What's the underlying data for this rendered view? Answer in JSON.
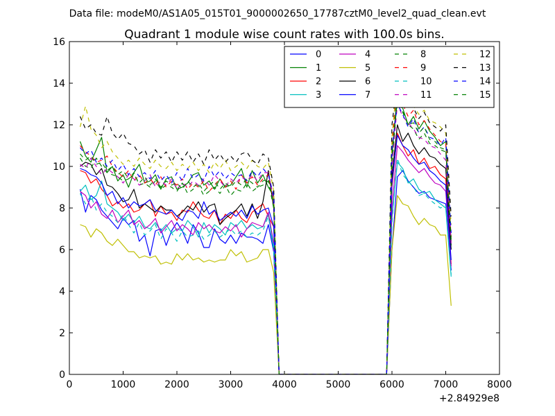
{
  "chart_data": {
    "type": "line",
    "suptitle": "Data file: modeM0/AS1A05_015T01_9000002650_17787cztM0_level2_quad_clean.evt",
    "title": "Quadrant 1 module wise count rates with 100.0s bins.",
    "xlabel": "",
    "ylabel": "",
    "x_offset_label": "+2.84929e8",
    "xlim": [
      0,
      8000
    ],
    "ylim": [
      0,
      16
    ],
    "xticks": [
      0,
      1000,
      2000,
      3000,
      4000,
      5000,
      6000,
      7000,
      8000
    ],
    "yticks": [
      0,
      2,
      4,
      6,
      8,
      10,
      12,
      14,
      16
    ],
    "grid": false,
    "legend_position": "top-right",
    "legend_columns": 4,
    "colors": {
      "b": "#0000ff",
      "g": "#008000",
      "r": "#ff0000",
      "c": "#00bfbf",
      "m": "#bf00bf",
      "y": "#bfbf00",
      "k": "#000000"
    },
    "x": [
      200,
      300,
      400,
      500,
      600,
      700,
      800,
      900,
      1000,
      1100,
      1200,
      1300,
      1400,
      1500,
      1600,
      1700,
      1800,
      1900,
      2000,
      2100,
      2200,
      2300,
      2400,
      2500,
      2600,
      2700,
      2800,
      2900,
      3000,
      3100,
      3200,
      3300,
      3400,
      3500,
      3600,
      3700,
      3800,
      3900,
      4000,
      5900,
      6000,
      6100,
      6200,
      6300,
      6400,
      6500,
      6600,
      6700,
      6800,
      6900,
      7000,
      7100
    ],
    "series": [
      {
        "name": "0",
        "color": "b",
        "dash": false,
        "values": [
          8.9,
          7.8,
          8.6,
          8.4,
          7.9,
          7.6,
          7.3,
          7.0,
          7.5,
          7.2,
          7.4,
          6.4,
          6.7,
          5.7,
          6.9,
          7.0,
          6.2,
          6.9,
          7.3,
          6.9,
          6.3,
          7.2,
          6.8,
          6.1,
          6.1,
          7.0,
          6.5,
          6.3,
          6.7,
          6.3,
          6.8,
          6.6,
          6.6,
          6.5,
          6.3,
          7.2,
          5.9,
          0,
          0,
          0,
          6.0,
          9.5,
          9.8,
          9.3,
          9.0,
          8.7,
          8.8,
          8.5,
          8.4,
          8.3,
          8.2,
          5.0
        ]
      },
      {
        "name": "1",
        "color": "g",
        "dash": false,
        "values": [
          11.2,
          10.5,
          10.2,
          10.8,
          11.4,
          9.7,
          10.0,
          9.3,
          9.6,
          9.0,
          9.7,
          10.1,
          9.2,
          9.3,
          9.6,
          8.9,
          9.4,
          9.5,
          8.9,
          9.0,
          9.2,
          9.6,
          9.7,
          9.1,
          9.3,
          8.9,
          9.4,
          9.0,
          9.1,
          9.5,
          9.9,
          9.0,
          9.8,
          9.2,
          9.6,
          9.0,
          8.6,
          0,
          0,
          0,
          10.5,
          13.6,
          12.8,
          12.0,
          12.4,
          11.8,
          12.2,
          11.7,
          11.4,
          11.0,
          11.2,
          6.2
        ]
      },
      {
        "name": "2",
        "color": "r",
        "dash": false,
        "values": [
          9.8,
          9.7,
          9.2,
          9.4,
          8.9,
          8.6,
          8.1,
          8.3,
          8.0,
          8.2,
          7.8,
          7.9,
          8.2,
          8.4,
          7.6,
          8.1,
          7.7,
          7.8,
          7.4,
          7.9,
          7.8,
          8.3,
          7.9,
          7.6,
          7.5,
          7.9,
          7.2,
          7.7,
          7.5,
          7.9,
          7.5,
          7.3,
          7.8,
          8.0,
          8.2,
          7.6,
          7.1,
          0,
          0,
          0,
          9.0,
          11.6,
          11.0,
          10.5,
          10.8,
          10.1,
          10.4,
          9.9,
          10.0,
          9.6,
          9.4,
          5.3
        ]
      },
      {
        "name": "3",
        "color": "c",
        "dash": false,
        "values": [
          8.8,
          9.1,
          8.4,
          8.6,
          9.3,
          8.2,
          8.0,
          7.8,
          7.4,
          7.7,
          7.3,
          7.6,
          7.1,
          7.0,
          7.3,
          6.9,
          7.2,
          6.8,
          7.0,
          6.9,
          7.4,
          7.1,
          6.6,
          7.3,
          6.8,
          7.2,
          7.0,
          6.7,
          7.3,
          7.1,
          7.4,
          7.0,
          7.2,
          7.0,
          7.1,
          7.7,
          6.0,
          0,
          0,
          0,
          7.5,
          10.2,
          9.9,
          9.2,
          9.4,
          8.9,
          8.7,
          8.8,
          8.4,
          8.2,
          8.0,
          4.7
        ]
      },
      {
        "name": "4",
        "color": "m",
        "dash": false,
        "values": [
          8.8,
          8.6,
          8.0,
          8.3,
          7.7,
          7.5,
          7.9,
          7.3,
          7.6,
          7.9,
          7.2,
          7.4,
          7.0,
          7.2,
          7.5,
          6.8,
          7.1,
          7.4,
          6.9,
          7.2,
          7.0,
          6.7,
          7.3,
          7.0,
          7.2,
          6.9,
          6.8,
          7.1,
          6.9,
          7.2,
          6.6,
          7.0,
          7.3,
          7.2,
          7.1,
          7.8,
          6.3,
          0,
          0,
          0,
          8.0,
          11.0,
          10.7,
          10.3,
          10.0,
          9.7,
          9.9,
          9.5,
          9.2,
          9.1,
          8.8,
          5.2
        ]
      },
      {
        "name": "5",
        "color": "y",
        "dash": false,
        "values": [
          7.2,
          7.1,
          6.6,
          7.0,
          6.8,
          6.4,
          6.2,
          6.5,
          6.2,
          5.9,
          5.9,
          5.6,
          5.7,
          5.6,
          5.7,
          5.3,
          5.4,
          5.3,
          5.8,
          5.5,
          5.8,
          5.5,
          5.6,
          5.4,
          5.5,
          5.4,
          5.5,
          5.5,
          6.0,
          5.7,
          5.9,
          5.4,
          5.5,
          5.6,
          6.0,
          6.0,
          4.9,
          0,
          0,
          0,
          6.0,
          8.6,
          8.2,
          8.1,
          7.6,
          7.2,
          7.5,
          7.2,
          7.1,
          6.7,
          6.7,
          3.3
        ]
      },
      {
        "name": "6",
        "color": "k",
        "dash": false,
        "values": [
          10.0,
          10.2,
          10.1,
          9.6,
          9.9,
          9.1,
          9.0,
          8.7,
          8.3,
          8.4,
          8.9,
          8.0,
          8.2,
          8.0,
          7.8,
          8.1,
          7.9,
          7.9,
          7.6,
          7.8,
          8.1,
          7.9,
          8.3,
          7.8,
          8.1,
          8.2,
          7.2,
          7.5,
          7.7,
          7.9,
          8.2,
          7.6,
          8.2,
          7.5,
          8.3,
          9.8,
          8.0,
          0,
          0,
          0,
          9.5,
          12.0,
          11.2,
          11.6,
          11.0,
          10.6,
          10.9,
          10.5,
          10.4,
          10.1,
          9.9,
          6.0
        ]
      },
      {
        "name": "7",
        "color": "b",
        "dash": false,
        "values": [
          9.9,
          9.8,
          9.6,
          9.5,
          9.2,
          8.6,
          8.8,
          8.2,
          8.5,
          8.0,
          8.3,
          8.1,
          8.2,
          8.4,
          7.9,
          7.8,
          7.7,
          7.9,
          7.6,
          7.4,
          7.9,
          7.8,
          7.5,
          8.3,
          7.7,
          7.9,
          7.4,
          7.6,
          7.8,
          7.6,
          7.9,
          7.5,
          8.1,
          7.7,
          7.9,
          8.0,
          7.1,
          0,
          0,
          0,
          9.2,
          11.5,
          11.0,
          10.8,
          10.4,
          10.1,
          10.2,
          9.8,
          9.6,
          9.3,
          9.1,
          5.5
        ]
      },
      {
        "name": "8",
        "color": "g",
        "dash": true,
        "values": [
          10.4,
          10.0,
          9.9,
          10.4,
          10.0,
          9.7,
          9.6,
          9.5,
          9.3,
          9.4,
          9.7,
          9.1,
          9.2,
          9.0,
          9.3,
          8.9,
          9.1,
          9.0,
          8.8,
          9.2,
          8.7,
          8.9,
          9.1,
          8.6,
          8.8,
          9.0,
          8.7,
          9.1,
          8.6,
          8.9,
          8.8,
          9.2,
          8.8,
          9.0,
          9.1,
          9.3,
          8.0,
          0,
          0,
          0,
          10.0,
          13.4,
          12.6,
          12.0,
          11.8,
          11.3,
          11.6,
          11.1,
          11.0,
          10.8,
          10.7,
          6.4
        ]
      },
      {
        "name": "9",
        "color": "r",
        "dash": true,
        "values": [
          11.0,
          10.7,
          10.5,
          10.2,
          10.3,
          10.5,
          10.0,
          9.7,
          9.5,
          9.8,
          9.3,
          9.6,
          9.2,
          9.4,
          9.1,
          9.5,
          9.0,
          9.3,
          9.1,
          9.4,
          8.9,
          9.2,
          9.0,
          9.3,
          8.8,
          9.1,
          9.4,
          9.0,
          9.3,
          8.9,
          9.6,
          9.2,
          9.5,
          9.1,
          9.4,
          9.6,
          8.2,
          0,
          0,
          0,
          10.8,
          14.4,
          13.0,
          12.4,
          12.7,
          12.0,
          12.2,
          11.8,
          11.5,
          11.2,
          11.1,
          6.6
        ]
      },
      {
        "name": "10",
        "color": "c",
        "dash": true,
        "values": [
          8.7,
          8.2,
          8.6,
          7.9,
          8.2,
          7.8,
          7.6,
          7.3,
          7.7,
          7.2,
          6.8,
          7.3,
          6.7,
          6.9,
          7.2,
          6.5,
          7.0,
          6.8,
          6.4,
          6.9,
          6.6,
          6.7,
          6.9,
          6.5,
          6.7,
          6.9,
          6.6,
          6.8,
          7.0,
          6.7,
          6.9,
          6.6,
          6.8,
          6.7,
          6.9,
          7.6,
          6.2,
          0,
          0,
          0,
          7.3,
          10.4,
          9.6,
          9.3,
          9.0,
          8.6,
          8.7,
          8.4,
          8.2,
          8.0,
          8.1,
          4.8
        ]
      },
      {
        "name": "11",
        "color": "m",
        "dash": true,
        "values": [
          10.1,
          9.9,
          10.4,
          10.0,
          9.6,
          9.9,
          9.7,
          9.5,
          9.2,
          9.6,
          9.4,
          9.1,
          9.3,
          9.6,
          9.0,
          9.3,
          9.1,
          9.4,
          8.9,
          9.2,
          9.0,
          9.3,
          9.1,
          9.4,
          9.1,
          9.6,
          9.3,
          9.0,
          9.4,
          9.2,
          9.5,
          9.3,
          9.6,
          9.3,
          9.7,
          9.7,
          8.4,
          0,
          0,
          0,
          10.0,
          13.0,
          12.4,
          12.1,
          11.8,
          11.4,
          11.3,
          11.0,
          10.9,
          10.6,
          10.3,
          6.3
        ]
      },
      {
        "name": "12",
        "color": "y",
        "dash": true,
        "values": [
          11.9,
          12.9,
          11.8,
          11.5,
          10.9,
          11.2,
          10.7,
          10.4,
          10.1,
          10.3,
          10.0,
          10.4,
          10.1,
          9.9,
          10.3,
          10.0,
          9.9,
          10.2,
          9.8,
          10.1,
          9.9,
          10.2,
          9.8,
          10.1,
          9.7,
          10.2,
          9.9,
          10.3,
          9.8,
          10.0,
          10.2,
          9.9,
          10.3,
          10.0,
          9.9,
          10.2,
          8.8,
          0,
          0,
          0,
          11.4,
          14.3,
          13.6,
          13.3,
          12.9,
          12.5,
          12.7,
          12.2,
          12.1,
          11.9,
          11.6,
          7.2
        ]
      },
      {
        "name": "13",
        "color": "k",
        "dash": true,
        "values": [
          12.4,
          11.8,
          12.0,
          11.6,
          11.5,
          12.4,
          11.6,
          11.3,
          11.6,
          11.1,
          11.0,
          10.6,
          10.8,
          10.2,
          10.8,
          10.4,
          10.7,
          10.2,
          10.7,
          10.3,
          10.7,
          10.2,
          10.6,
          10.1,
          10.8,
          10.3,
          10.6,
          10.2,
          10.5,
          10.2,
          10.6,
          10.7,
          10.3,
          10.1,
          10.6,
          10.4,
          9.0,
          0,
          0,
          0,
          12.0,
          14.2,
          13.5,
          13.0,
          12.8,
          12.3,
          12.6,
          12.1,
          11.9,
          11.7,
          12.0,
          7.6
        ]
      },
      {
        "name": "14",
        "color": "b",
        "dash": true,
        "values": [
          10.9,
          10.6,
          10.8,
          10.2,
          10.4,
          10.0,
          10.3,
          9.8,
          10.1,
          9.6,
          9.9,
          9.5,
          9.7,
          9.4,
          9.8,
          9.3,
          9.6,
          9.2,
          9.7,
          9.3,
          9.9,
          9.4,
          9.6,
          9.3,
          10.0,
          9.5,
          9.8,
          9.4,
          9.7,
          9.5,
          9.6,
          9.3,
          9.8,
          9.5,
          9.9,
          9.6,
          8.6,
          0,
          0,
          0,
          10.9,
          13.0,
          12.5,
          11.9,
          12.3,
          11.6,
          11.9,
          11.4,
          11.3,
          11.0,
          11.4,
          6.8
        ]
      },
      {
        "name": "15",
        "color": "g",
        "dash": true,
        "values": [
          10.6,
          10.3,
          10.5,
          10.1,
          10.2,
          9.8,
          10.0,
          9.6,
          9.8,
          9.4,
          9.6,
          9.2,
          9.5,
          9.1,
          9.4,
          9.0,
          9.3,
          9.1,
          9.2,
          8.9,
          9.3,
          9.0,
          9.2,
          8.8,
          9.1,
          9.3,
          8.9,
          9.2,
          9.0,
          9.3,
          9.1,
          9.4,
          9.2,
          9.0,
          9.3,
          9.4,
          8.2,
          0,
          0,
          0,
          10.6,
          13.2,
          12.7,
          12.0,
          12.1,
          11.6,
          11.9,
          11.3,
          11.2,
          10.9,
          10.8,
          6.5
        ]
      }
    ]
  }
}
